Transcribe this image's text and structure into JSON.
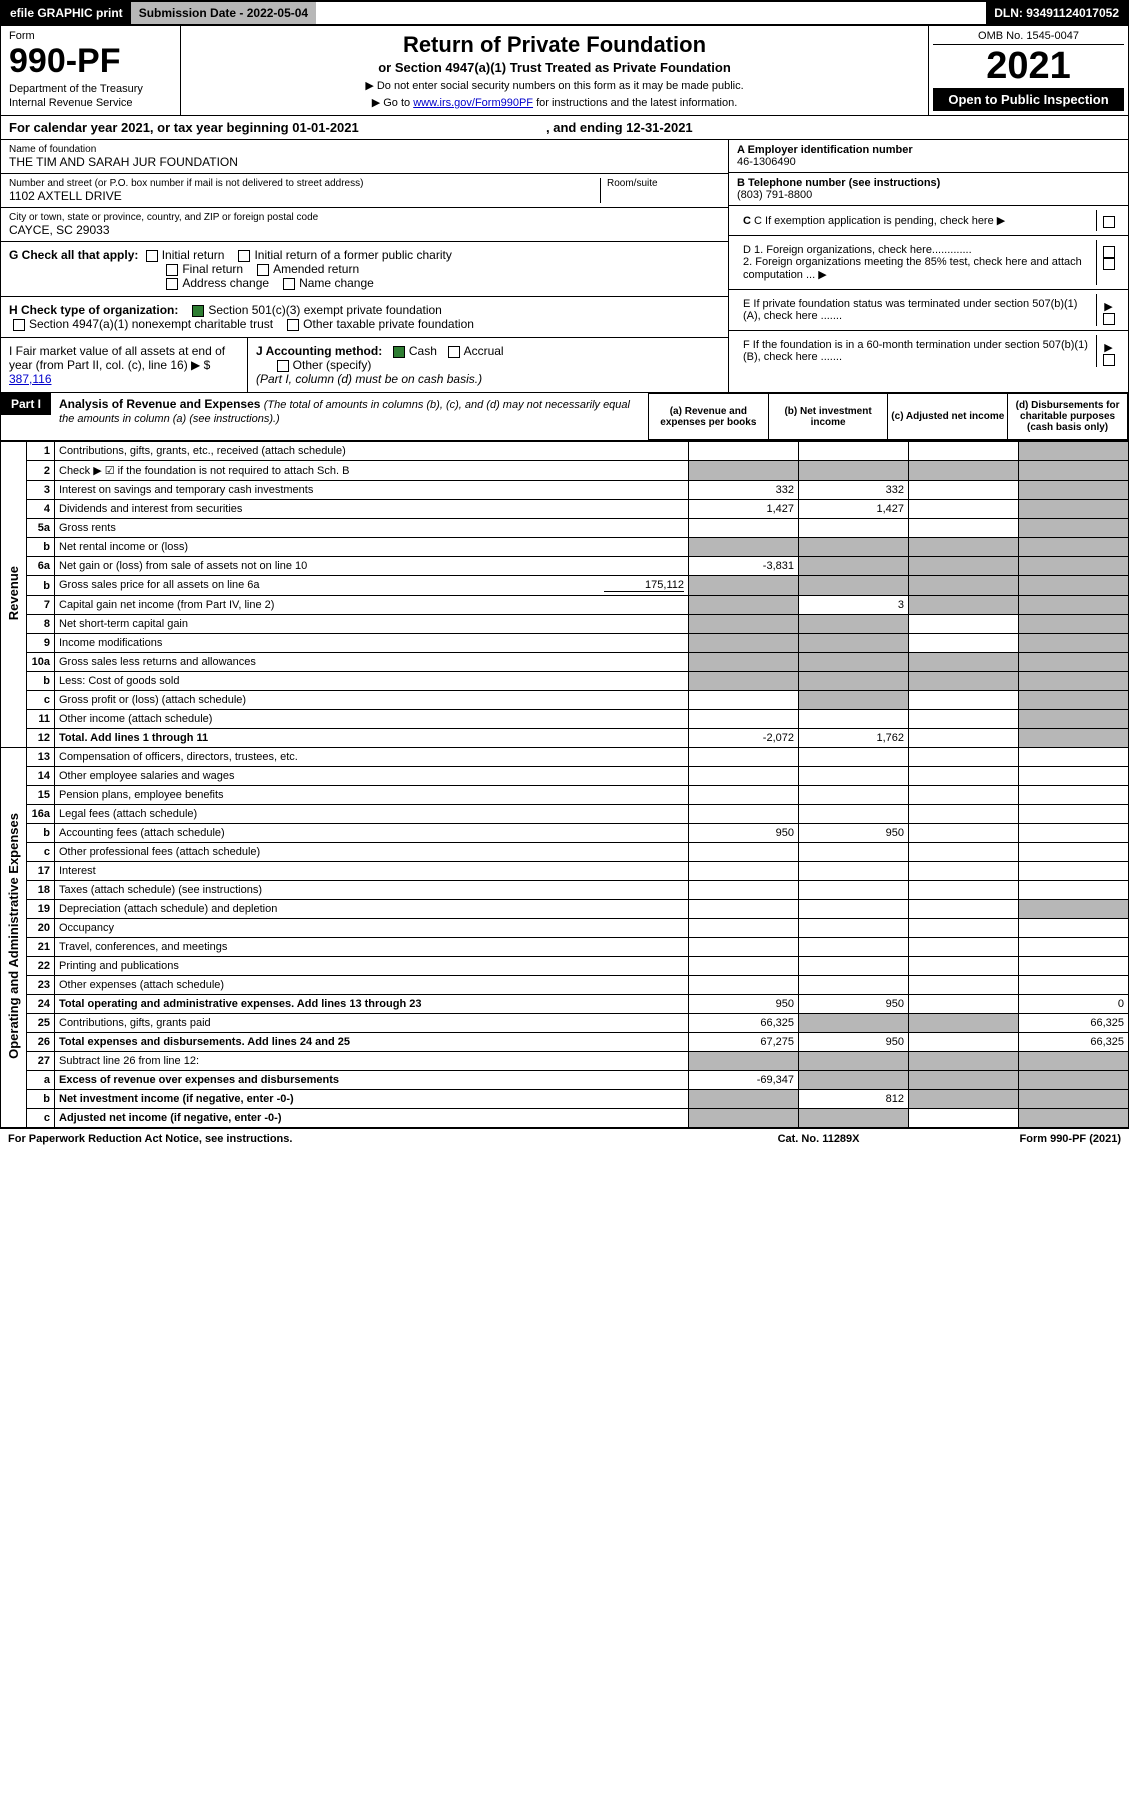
{
  "top": {
    "efile": "efile GRAPHIC print",
    "subdate_label": "Submission Date - ",
    "subdate": "2022-05-04",
    "dln_label": "DLN: ",
    "dln": "93491124017052"
  },
  "header": {
    "form_label": "Form",
    "form_num": "990-PF",
    "dept": "Department of the Treasury",
    "irs": "Internal Revenue Service",
    "title": "Return of Private Foundation",
    "sub": "or Section 4947(a)(1) Trust Treated as Private Foundation",
    "note1": "▶ Do not enter social security numbers on this form as it may be made public.",
    "note2_a": "▶ Go to ",
    "note2_link": "www.irs.gov/Form990PF",
    "note2_b": " for instructions and the latest information.",
    "omb": "OMB No. 1545-0047",
    "year": "2021",
    "open": "Open to Public Inspection"
  },
  "cal": {
    "a": "For calendar year 2021, or tax year beginning ",
    "b": "01-01-2021",
    "c": " , and ending ",
    "d": "12-31-2021"
  },
  "id": {
    "name_label": "Name of foundation",
    "name": "THE TIM AND SARAH JUR FOUNDATION",
    "addr_label": "Number and street (or P.O. box number if mail is not delivered to street address)",
    "addr": "1102 AXTELL DRIVE",
    "room_label": "Room/suite",
    "city_label": "City or town, state or province, country, and ZIP or foreign postal code",
    "city": "CAYCE, SC  29033",
    "ein_label": "A Employer identification number",
    "ein": "46-1306490",
    "tel_label": "B Telephone number (see instructions)",
    "tel": "(803) 791-8800",
    "c_label": "C If exemption application is pending, check here",
    "d1": "D 1. Foreign organizations, check here.............",
    "d2": "2. Foreign organizations meeting the 85% test, check here and attach computation ...",
    "e_label": "E  If private foundation status was terminated under section 507(b)(1)(A), check here .......",
    "f_label": "F  If the foundation is in a 60-month termination under section 507(b)(1)(B), check here .......",
    "g_label": "G Check all that apply:",
    "g_opts": [
      "Initial return",
      "Initial return of a former public charity",
      "Final return",
      "Amended return",
      "Address change",
      "Name change"
    ],
    "h_label": "H Check type of organization:",
    "h1": "Section 501(c)(3) exempt private foundation",
    "h2": "Section 4947(a)(1) nonexempt charitable trust",
    "h3": "Other taxable private foundation",
    "i_label": "I Fair market value of all assets at end of year (from Part II, col. (c), line 16) ▶ $",
    "i_val": "387,116",
    "j_label": "J Accounting method:",
    "j1": "Cash",
    "j2": "Accrual",
    "j3": "Other (specify)",
    "j_note": "(Part I, column (d) must be on cash basis.)"
  },
  "part1": {
    "tag": "Part I",
    "title": "Analysis of Revenue and Expenses ",
    "note": "(The total of amounts in columns (b), (c), and (d) may not necessarily equal the amounts in column (a) (see instructions).)",
    "cols": {
      "a": "(a)  Revenue and expenses per books",
      "b": "(b)  Net investment income",
      "c": "(c)  Adjusted net income",
      "d": "(d)  Disbursements for charitable purposes (cash basis only)"
    },
    "vtabs": {
      "rev": "Revenue",
      "exp": "Operating and Administrative Expenses"
    }
  },
  "rows": [
    {
      "n": "1",
      "d": "Contributions, gifts, grants, etc., received (attach schedule)",
      "a": "",
      "b": "",
      "c": "",
      "dd": "",
      "greyD": true
    },
    {
      "n": "2",
      "d": "Check ▶ ☑ if the foundation is not required to attach Sch. B",
      "a": "",
      "b": "",
      "c": "",
      "dd": "",
      "greyA": true,
      "greyB": true,
      "greyC": true,
      "greyD": true,
      "boldNot": true
    },
    {
      "n": "3",
      "d": "Interest on savings and temporary cash investments",
      "a": "332",
      "b": "332",
      "c": "",
      "dd": "",
      "greyD": true
    },
    {
      "n": "4",
      "d": "Dividends and interest from securities",
      "a": "1,427",
      "b": "1,427",
      "c": "",
      "dd": "",
      "greyD": true
    },
    {
      "n": "5a",
      "d": "Gross rents",
      "a": "",
      "b": "",
      "c": "",
      "dd": "",
      "greyD": true
    },
    {
      "n": "b",
      "d": "Net rental income or (loss)",
      "a": "",
      "b": "",
      "c": "",
      "dd": "",
      "greyA": true,
      "greyB": true,
      "greyC": true,
      "greyD": true,
      "inset": true
    },
    {
      "n": "6a",
      "d": "Net gain or (loss) from sale of assets not on line 10",
      "a": "-3,831",
      "b": "",
      "c": "",
      "dd": "",
      "greyB": true,
      "greyC": true,
      "greyD": true
    },
    {
      "n": "b",
      "d": "Gross sales price for all assets on line 6a",
      "inline": "175,112",
      "a": "",
      "b": "",
      "c": "",
      "dd": "",
      "greyA": true,
      "greyB": true,
      "greyC": true,
      "greyD": true
    },
    {
      "n": "7",
      "d": "Capital gain net income (from Part IV, line 2)",
      "a": "",
      "b": "3",
      "c": "",
      "dd": "",
      "greyA": true,
      "greyC": true,
      "greyD": true
    },
    {
      "n": "8",
      "d": "Net short-term capital gain",
      "a": "",
      "b": "",
      "c": "",
      "dd": "",
      "greyA": true,
      "greyB": true,
      "greyD": true
    },
    {
      "n": "9",
      "d": "Income modifications",
      "a": "",
      "b": "",
      "c": "",
      "dd": "",
      "greyA": true,
      "greyB": true,
      "greyD": true
    },
    {
      "n": "10a",
      "d": "Gross sales less returns and allowances",
      "a": "",
      "b": "",
      "c": "",
      "dd": "",
      "greyA": true,
      "greyB": true,
      "greyC": true,
      "greyD": true,
      "inset": true
    },
    {
      "n": "b",
      "d": "Less: Cost of goods sold",
      "a": "",
      "b": "",
      "c": "",
      "dd": "",
      "greyA": true,
      "greyB": true,
      "greyC": true,
      "greyD": true,
      "inset": true
    },
    {
      "n": "c",
      "d": "Gross profit or (loss) (attach schedule)",
      "a": "",
      "b": "",
      "c": "",
      "dd": "",
      "greyB": true,
      "greyD": true
    },
    {
      "n": "11",
      "d": "Other income (attach schedule)",
      "a": "",
      "b": "",
      "c": "",
      "dd": "",
      "greyD": true
    },
    {
      "n": "12",
      "d": "Total. Add lines 1 through 11",
      "a": "-2,072",
      "b": "1,762",
      "c": "",
      "dd": "",
      "greyD": true,
      "bold": true
    }
  ],
  "exp_rows": [
    {
      "n": "13",
      "d": "Compensation of officers, directors, trustees, etc.",
      "a": "",
      "b": "",
      "c": "",
      "dd": ""
    },
    {
      "n": "14",
      "d": "Other employee salaries and wages",
      "a": "",
      "b": "",
      "c": "",
      "dd": ""
    },
    {
      "n": "15",
      "d": "Pension plans, employee benefits",
      "a": "",
      "b": "",
      "c": "",
      "dd": ""
    },
    {
      "n": "16a",
      "d": "Legal fees (attach schedule)",
      "a": "",
      "b": "",
      "c": "",
      "dd": ""
    },
    {
      "n": "b",
      "d": "Accounting fees (attach schedule)",
      "a": "950",
      "b": "950",
      "c": "",
      "dd": ""
    },
    {
      "n": "c",
      "d": "Other professional fees (attach schedule)",
      "a": "",
      "b": "",
      "c": "",
      "dd": ""
    },
    {
      "n": "17",
      "d": "Interest",
      "a": "",
      "b": "",
      "c": "",
      "dd": ""
    },
    {
      "n": "18",
      "d": "Taxes (attach schedule) (see instructions)",
      "a": "",
      "b": "",
      "c": "",
      "dd": ""
    },
    {
      "n": "19",
      "d": "Depreciation (attach schedule) and depletion",
      "a": "",
      "b": "",
      "c": "",
      "dd": "",
      "greyD": true
    },
    {
      "n": "20",
      "d": "Occupancy",
      "a": "",
      "b": "",
      "c": "",
      "dd": ""
    },
    {
      "n": "21",
      "d": "Travel, conferences, and meetings",
      "a": "",
      "b": "",
      "c": "",
      "dd": ""
    },
    {
      "n": "22",
      "d": "Printing and publications",
      "a": "",
      "b": "",
      "c": "",
      "dd": ""
    },
    {
      "n": "23",
      "d": "Other expenses (attach schedule)",
      "a": "",
      "b": "",
      "c": "",
      "dd": ""
    },
    {
      "n": "24",
      "d": "Total operating and administrative expenses. Add lines 13 through 23",
      "a": "950",
      "b": "950",
      "c": "",
      "dd": "0",
      "bold": true
    },
    {
      "n": "25",
      "d": "Contributions, gifts, grants paid",
      "a": "66,325",
      "b": "",
      "c": "",
      "dd": "66,325",
      "greyB": true,
      "greyC": true
    },
    {
      "n": "26",
      "d": "Total expenses and disbursements. Add lines 24 and 25",
      "a": "67,275",
      "b": "950",
      "c": "",
      "dd": "66,325",
      "bold": true
    },
    {
      "n": "27",
      "d": "Subtract line 26 from line 12:",
      "a": "",
      "b": "",
      "c": "",
      "dd": "",
      "greyA": true,
      "greyB": true,
      "greyC": true,
      "greyD": true
    },
    {
      "n": "a",
      "d": "Excess of revenue over expenses and disbursements",
      "a": "-69,347",
      "b": "",
      "c": "",
      "dd": "",
      "greyB": true,
      "greyC": true,
      "greyD": true,
      "bold": true
    },
    {
      "n": "b",
      "d": "Net investment income (if negative, enter -0-)",
      "a": "",
      "b": "812",
      "c": "",
      "dd": "",
      "greyA": true,
      "greyC": true,
      "greyD": true,
      "bold": true
    },
    {
      "n": "c",
      "d": "Adjusted net income (if negative, enter -0-)",
      "a": "",
      "b": "",
      "c": "",
      "dd": "",
      "greyA": true,
      "greyB": true,
      "greyD": true,
      "bold": true
    }
  ],
  "footer": {
    "left": "For Paperwork Reduction Act Notice, see instructions.",
    "mid": "Cat. No. 11289X",
    "right": "Form 990-PF (2021)"
  },
  "colors": {
    "grey": "#b7b7b7",
    "link": "#0000cc",
    "check": "#2e7d32"
  }
}
